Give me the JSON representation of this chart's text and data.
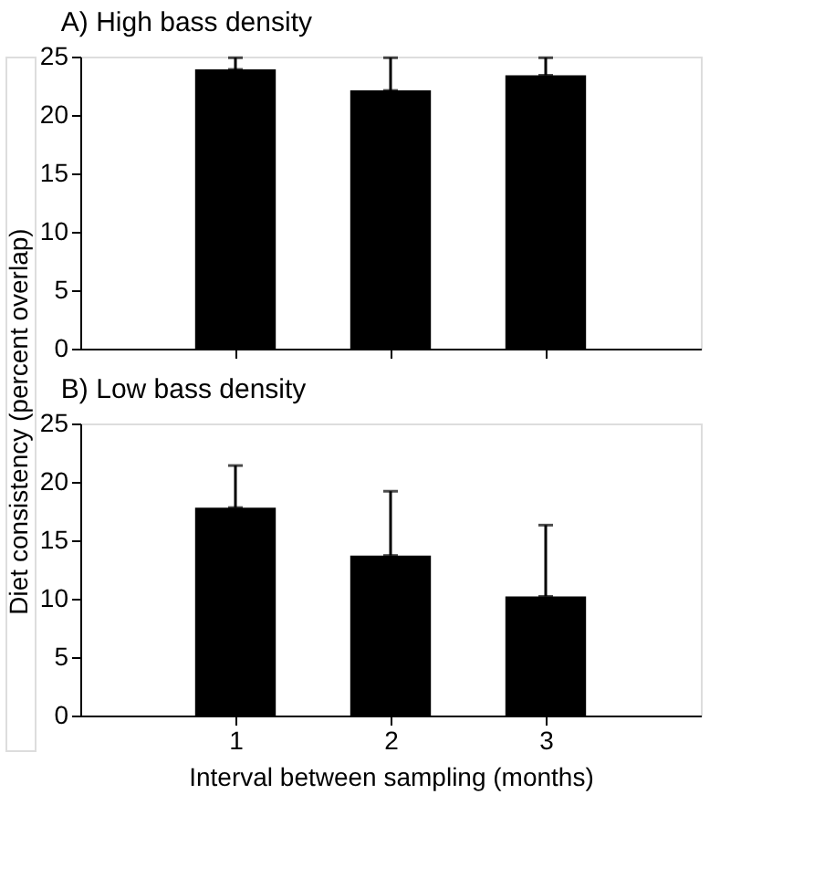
{
  "chart_data": [
    {
      "type": "bar",
      "title": "A)  High bass density",
      "x": [
        1,
        2,
        3
      ],
      "values": [
        23.9,
        22.1,
        23.4
      ],
      "color": "#000000",
      "errors": [
        [
          23.9,
          24.9
        ],
        [
          22.1,
          24.9
        ],
        [
          23.4,
          24.9
        ]
      ],
      "xlim": [
        0,
        4
      ],
      "xticks": [
        1,
        2,
        3
      ],
      "ylim": [
        0,
        25
      ],
      "yticks": [
        0,
        5,
        10,
        15,
        20,
        25
      ],
      "tick_labels": "y",
      "grid": false
    },
    {
      "type": "bar",
      "title": "B)  Low bass density",
      "x": [
        1,
        2,
        3
      ],
      "values": [
        17.8,
        13.7,
        10.2
      ],
      "color": "#000000",
      "errors": [
        [
          17.8,
          21.4
        ],
        [
          13.7,
          19.2
        ],
        [
          10.2,
          16.3
        ]
      ],
      "xlabel": "Interval between sampling (months)",
      "ylabel": "Diet consistency  (percent overlap)",
      "xlim": [
        0,
        4
      ],
      "xticks": [
        1,
        2,
        3
      ],
      "ylim": [
        0,
        25
      ],
      "yticks": [
        0,
        5,
        10,
        15,
        20,
        25
      ],
      "grid": false
    }
  ]
}
